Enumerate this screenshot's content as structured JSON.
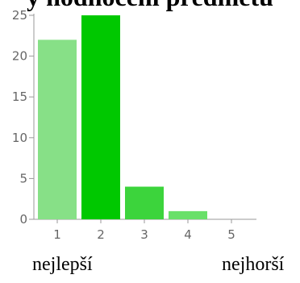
{
  "title": "y hodnocení předmětu",
  "labels": {
    "best": "nejlepší",
    "worst": "nejhorší"
  },
  "chart_data": {
    "type": "bar",
    "categories": [
      "1",
      "2",
      "3",
      "4",
      "5"
    ],
    "values": [
      22,
      25,
      4,
      1,
      0
    ],
    "colors": [
      "#87E087",
      "#00C800",
      "#3CD43C",
      "#69E069",
      "#69E069"
    ],
    "title": "",
    "xlabel": "",
    "ylabel": "",
    "ylim": [
      0,
      25
    ],
    "yticks": [
      0,
      5,
      10,
      15,
      20,
      25
    ],
    "grid": false,
    "axis_color": "#999999"
  }
}
